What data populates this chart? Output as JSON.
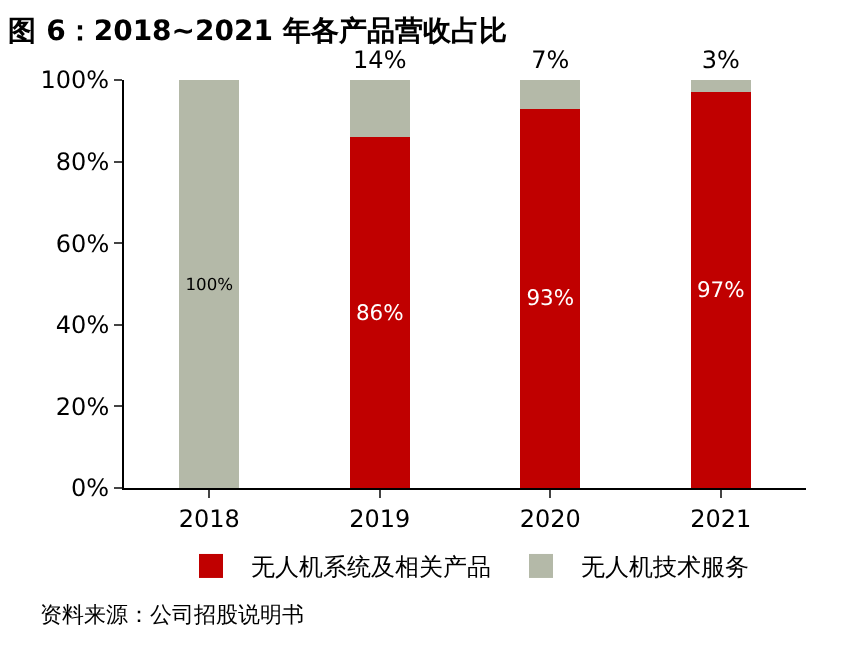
{
  "chart_data": {
    "type": "bar",
    "title": "图 6：2018~2021 年各产品营收占比",
    "categories": [
      "2018",
      "2019",
      "2020",
      "2021"
    ],
    "stacked": true,
    "series": [
      {
        "name": "无人机系统及相关产品",
        "color": "#c00000",
        "values": [
          0,
          86,
          93,
          97
        ],
        "value_labels": [
          null,
          "86%",
          "93%",
          "97%"
        ]
      },
      {
        "name": "无人机技术服务",
        "color": "#b4b9a8",
        "values": [
          100,
          14,
          7,
          3
        ],
        "value_labels": [
          "100%",
          "14%",
          "7%",
          "3%"
        ]
      }
    ],
    "ylim": [
      0,
      100
    ],
    "yticks": [
      {
        "value": 0,
        "label": "0%"
      },
      {
        "value": 20,
        "label": "20%"
      },
      {
        "value": 40,
        "label": "40%"
      },
      {
        "value": 60,
        "label": "60%"
      },
      {
        "value": 80,
        "label": "80%"
      },
      {
        "value": 100,
        "label": "100%"
      }
    ],
    "legend": "bottom",
    "annotations": [
      "资料来源：公司招股说明书"
    ]
  }
}
